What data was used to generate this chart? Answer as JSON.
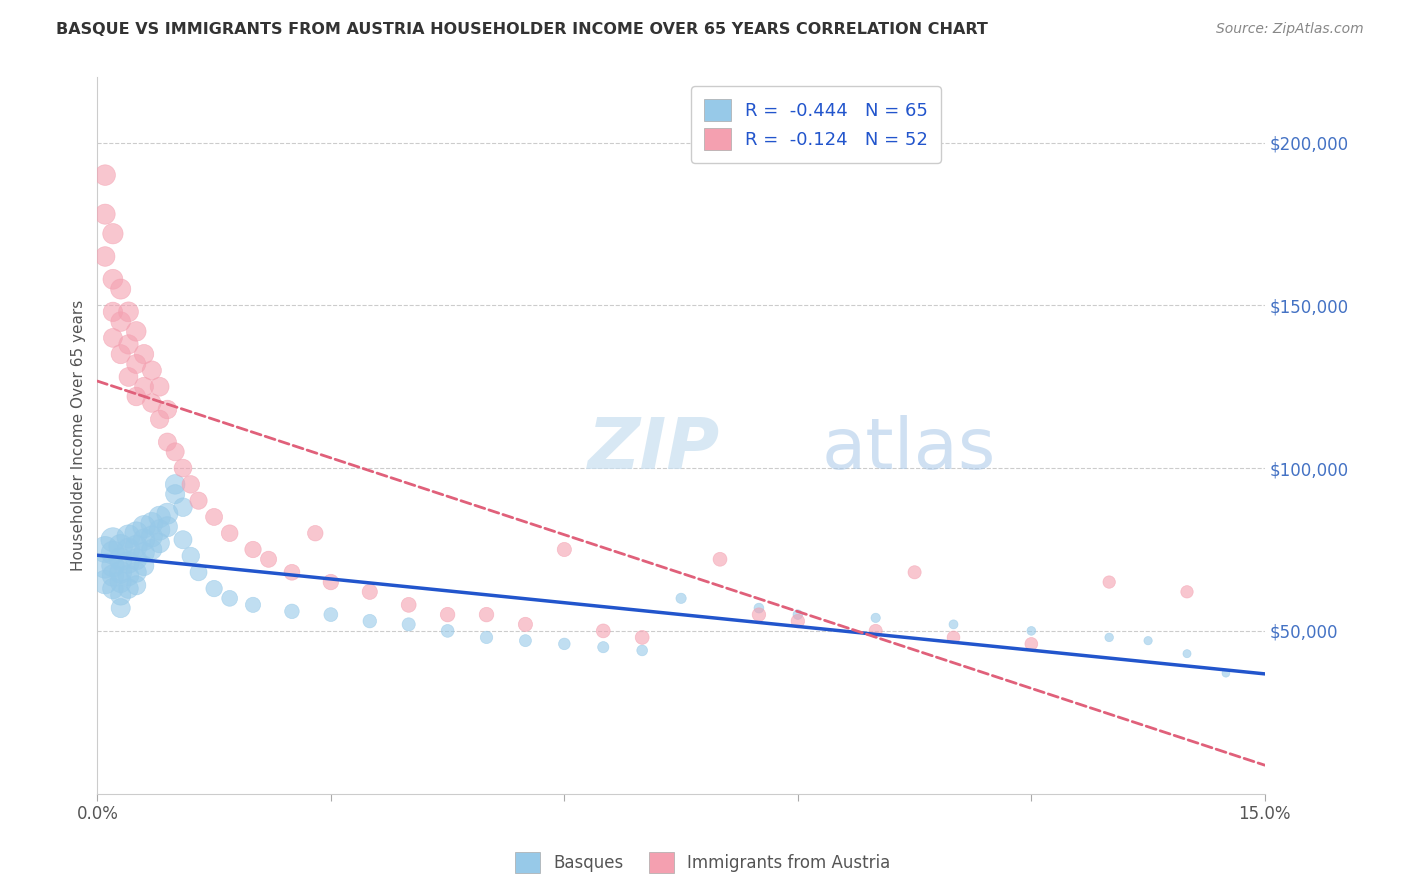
{
  "title": "BASQUE VS IMMIGRANTS FROM AUSTRIA HOUSEHOLDER INCOME OVER 65 YEARS CORRELATION CHART",
  "source": "Source: ZipAtlas.com",
  "ylabel": "Householder Income Over 65 years",
  "watermark_zip": "ZIP",
  "watermark_atlas": "atlas",
  "legend_label1": "Basques",
  "legend_label2": "Immigrants from Austria",
  "r1": -0.444,
  "n1": 65,
  "r2": -0.124,
  "n2": 52,
  "xlim": [
    0.0,
    0.15
  ],
  "ylim": [
    0,
    220000
  ],
  "xticks": [
    0.0,
    0.03,
    0.06,
    0.09,
    0.12,
    0.15
  ],
  "ytick_positions": [
    0,
    50000,
    100000,
    150000,
    200000
  ],
  "ytick_labels": [
    "",
    "$50,000",
    "$100,000",
    "$150,000",
    "$200,000"
  ],
  "color_blue": "#97C9E8",
  "color_pink": "#F4A0B0",
  "line_blue": "#2255CC",
  "line_pink": "#E0607A",
  "background_color": "#FFFFFF",
  "basques_x": [
    0.001,
    0.001,
    0.001,
    0.002,
    0.002,
    0.002,
    0.002,
    0.002,
    0.003,
    0.003,
    0.003,
    0.003,
    0.003,
    0.003,
    0.004,
    0.004,
    0.004,
    0.004,
    0.004,
    0.005,
    0.005,
    0.005,
    0.005,
    0.005,
    0.006,
    0.006,
    0.006,
    0.006,
    0.007,
    0.007,
    0.007,
    0.008,
    0.008,
    0.008,
    0.009,
    0.009,
    0.01,
    0.01,
    0.011,
    0.011,
    0.012,
    0.013,
    0.015,
    0.017,
    0.02,
    0.025,
    0.03,
    0.035,
    0.04,
    0.045,
    0.05,
    0.055,
    0.06,
    0.065,
    0.07,
    0.075,
    0.085,
    0.09,
    0.1,
    0.11,
    0.12,
    0.13,
    0.135,
    0.14,
    0.145
  ],
  "basques_y": [
    75000,
    70000,
    65000,
    78000,
    74000,
    70000,
    67000,
    63000,
    76000,
    72000,
    68000,
    65000,
    61000,
    57000,
    79000,
    75000,
    71000,
    67000,
    63000,
    80000,
    76000,
    72000,
    68000,
    64000,
    82000,
    78000,
    74000,
    70000,
    83000,
    79000,
    75000,
    85000,
    81000,
    77000,
    86000,
    82000,
    95000,
    92000,
    88000,
    78000,
    73000,
    68000,
    63000,
    60000,
    58000,
    56000,
    55000,
    53000,
    52000,
    50000,
    48000,
    47000,
    46000,
    45000,
    44000,
    60000,
    57000,
    55000,
    54000,
    52000,
    50000,
    48000,
    47000,
    43000,
    37000
  ],
  "basques_size": [
    350,
    320,
    290,
    300,
    280,
    260,
    240,
    220,
    290,
    270,
    250,
    230,
    210,
    190,
    280,
    260,
    240,
    220,
    200,
    270,
    250,
    230,
    210,
    190,
    260,
    240,
    220,
    200,
    250,
    230,
    210,
    240,
    220,
    200,
    230,
    210,
    200,
    190,
    180,
    170,
    160,
    150,
    140,
    130,
    120,
    110,
    100,
    95,
    90,
    85,
    80,
    75,
    70,
    65,
    60,
    55,
    50,
    48,
    45,
    42,
    40,
    38,
    36,
    34,
    32
  ],
  "austria_x": [
    0.001,
    0.001,
    0.001,
    0.002,
    0.002,
    0.002,
    0.002,
    0.003,
    0.003,
    0.003,
    0.004,
    0.004,
    0.004,
    0.005,
    0.005,
    0.005,
    0.006,
    0.006,
    0.007,
    0.007,
    0.008,
    0.008,
    0.009,
    0.009,
    0.01,
    0.011,
    0.012,
    0.013,
    0.015,
    0.017,
    0.02,
    0.022,
    0.025,
    0.028,
    0.03,
    0.035,
    0.04,
    0.045,
    0.05,
    0.055,
    0.06,
    0.065,
    0.07,
    0.08,
    0.085,
    0.09,
    0.1,
    0.105,
    0.11,
    0.12,
    0.13,
    0.14
  ],
  "austria_y": [
    190000,
    178000,
    165000,
    172000,
    158000,
    148000,
    140000,
    155000,
    145000,
    135000,
    148000,
    138000,
    128000,
    142000,
    132000,
    122000,
    135000,
    125000,
    130000,
    120000,
    125000,
    115000,
    118000,
    108000,
    105000,
    100000,
    95000,
    90000,
    85000,
    80000,
    75000,
    72000,
    68000,
    80000,
    65000,
    62000,
    58000,
    55000,
    55000,
    52000,
    75000,
    50000,
    48000,
    72000,
    55000,
    53000,
    50000,
    68000,
    48000,
    46000,
    65000,
    62000
  ],
  "austria_size": [
    220,
    210,
    200,
    215,
    205,
    195,
    185,
    210,
    200,
    190,
    205,
    195,
    185,
    200,
    190,
    180,
    195,
    185,
    190,
    180,
    185,
    175,
    180,
    170,
    170,
    165,
    160,
    155,
    150,
    145,
    140,
    135,
    130,
    125,
    125,
    120,
    115,
    110,
    110,
    105,
    105,
    100,
    100,
    100,
    95,
    95,
    90,
    90,
    85,
    85,
    80,
    80
  ]
}
